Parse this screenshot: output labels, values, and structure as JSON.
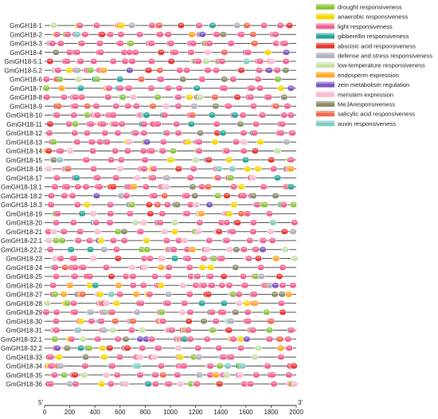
{
  "genes": [
    "GmGH18-1",
    "GmGH18-2",
    "GmGH18-3",
    "GmGH18-4",
    "GmGH18-5.1",
    "GmGH18-5.2",
    "GmGH18-6",
    "GmGH18-7",
    "GmGH18-8",
    "GmGH18-9",
    "GmGH18-10",
    "GmGH18-11",
    "GmGH18-12",
    "GmGH18-13",
    "GmGH18-14",
    "GmGH18-15",
    "GmGH18-16",
    "GmGH18-17",
    "GmGH18-18.1",
    "GmGH18-18.2",
    "GmGH18-18.3",
    "GmGH18-19",
    "GmGH18-20",
    "GmGH18-21",
    "GmGH18-22.1",
    "GmGH18-22.2",
    "GmGH18-23",
    "GmGH18-24",
    "GmGH18-25",
    "GmGH18-26",
    "GmGH18-27",
    "GmGH18-28",
    "GmGH18-29",
    "GmGH18-30",
    "GmGH18-31",
    "GmGH18-32.1",
    "GmGH18-32.2",
    "GmGH18-33",
    "GmGH18-34",
    "GmGH18-35",
    "GmGH18-36"
  ],
  "axis": {
    "range": [
      0,
      2000
    ],
    "ticks": [
      0,
      200,
      400,
      600,
      800,
      1000,
      1200,
      1400,
      1600,
      1800,
      2000
    ],
    "start_label": "5'",
    "end_label": "3'"
  },
  "legend": [
    {
      "key": "drought",
      "label": "drought responsiveness",
      "color": "#8cc63f"
    },
    {
      "key": "anaerobic",
      "label": "anaerobic responsiveness",
      "color": "#f5d800"
    },
    {
      "key": "light",
      "label": "light responsiveness",
      "color": "#f06292"
    },
    {
      "key": "gibberellin",
      "label": "gibberellin responsiveness",
      "color": "#26a69a"
    },
    {
      "key": "abscisic",
      "label": "abscisic acid responsiveness",
      "color": "#e53935"
    },
    {
      "key": "defense",
      "label": "defense and stress responsiveness",
      "color": "#b0b0c0"
    },
    {
      "key": "lowtemp",
      "label": "low-temperature responsiveness",
      "color": "#c5e1a5"
    },
    {
      "key": "endosperm",
      "label": "endosperm expression",
      "color": "#ffa726"
    },
    {
      "key": "zein",
      "label": "zein metabolism regulation",
      "color": "#7e57c2"
    },
    {
      "key": "meristem",
      "label": "meristem expression",
      "color": "#f8bbd0"
    },
    {
      "key": "meja",
      "label": "MeJAresponsiveness",
      "color": "#8d8d6a"
    },
    {
      "key": "salicylic",
      "label": "salicylic acid responsiveness",
      "color": "#ef6c4f"
    },
    {
      "key": "auxin",
      "label": "auxin responsiveness",
      "color": "#80cbc4"
    }
  ]
}
